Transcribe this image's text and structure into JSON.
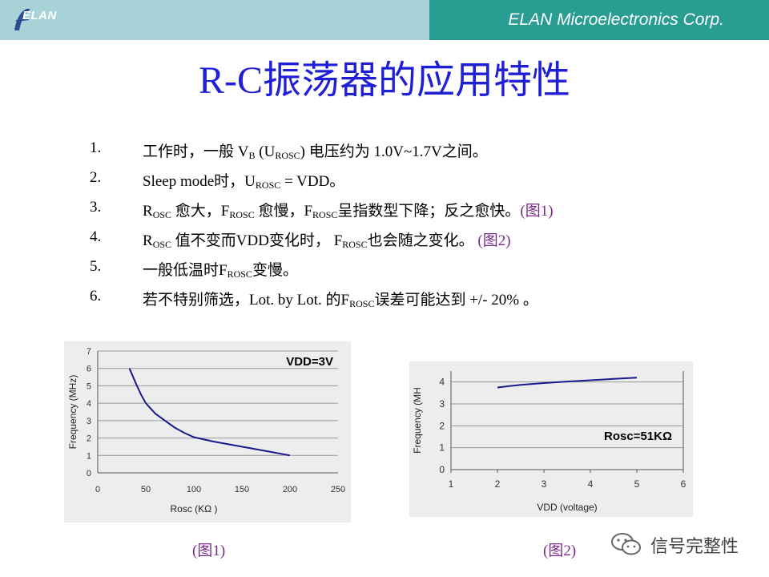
{
  "header": {
    "logo_text": "ELAN",
    "company": "ELAN Microelectronics Corp."
  },
  "title": "R-C振荡器的应用特性",
  "items": [
    {
      "num": "1.",
      "parts": [
        "工作时，一般 V",
        "B",
        " (U",
        "ROSC",
        ") 电压约为 1.0V~1.7V之间。"
      ]
    },
    {
      "num": "2.",
      "parts": [
        "Sleep mode时，U",
        "ROSC",
        " = VDD。"
      ]
    },
    {
      "num": "3.",
      "parts": [
        "R",
        "OSC",
        " 愈大，F",
        "ROSC",
        " 愈慢，F",
        "ROSC",
        "呈指数型下降；反之愈快。"
      ],
      "ref": "(图1)"
    },
    {
      "num": "4.",
      "parts": [
        "R",
        "OSC",
        " 值不变而VDD变化时， F",
        "ROSC",
        "也会随之变化。 "
      ],
      "ref": "(图2)"
    },
    {
      "num": "5.",
      "parts": [
        "一般低温时F",
        "ROSC",
        "变慢。"
      ]
    },
    {
      "num": "6.",
      "parts": [
        "若不特别筛选，Lot. by Lot. 的F",
        "ROSC",
        "误差可能达到 +/- 20% 。"
      ]
    }
  ],
  "captions": {
    "fig1": "(图1)",
    "fig2": "(图2)"
  },
  "watermark": "信号完整性",
  "colors": {
    "title": "#1f1fd6",
    "header_left": "#a7d3d8",
    "header_right": "#2a9d93",
    "curve": "#1a1a8c",
    "ref": "#7a2a8a"
  },
  "chart_data": [
    {
      "type": "line",
      "title": "VDD=3V",
      "xlabel": "Rosc (KΩ )",
      "ylabel": "Frequency (MHz)",
      "xlim": [
        0,
        250
      ],
      "ylim": [
        0,
        7
      ],
      "xticks": [
        "0",
        "50",
        "100",
        "150",
        "200",
        "250"
      ],
      "yticks": [
        "0",
        "1",
        "2",
        "3",
        "4",
        "5",
        "6",
        "7"
      ],
      "grid": true,
      "x": [
        33,
        40,
        45,
        50,
        55,
        60,
        70,
        80,
        90,
        100,
        120,
        150,
        180,
        200
      ],
      "y": [
        6.0,
        5.1,
        4.5,
        4.0,
        3.7,
        3.4,
        3.0,
        2.6,
        2.3,
        2.05,
        1.8,
        1.5,
        1.2,
        1.0
      ]
    },
    {
      "type": "line",
      "title": "Rosc=51KΩ",
      "xlabel": "VDD (voltage)",
      "ylabel": "Frequency (MH",
      "xlim": [
        1,
        6
      ],
      "ylim": [
        0,
        4.5
      ],
      "xticks": [
        "1",
        "2",
        "3",
        "4",
        "5",
        "6"
      ],
      "yticks": [
        "0",
        "1",
        "2",
        "3",
        "4"
      ],
      "grid": true,
      "x": [
        2,
        2.5,
        3,
        3.5,
        4,
        4.5,
        5
      ],
      "y": [
        3.75,
        3.87,
        3.95,
        4.02,
        4.08,
        4.14,
        4.2
      ]
    }
  ]
}
